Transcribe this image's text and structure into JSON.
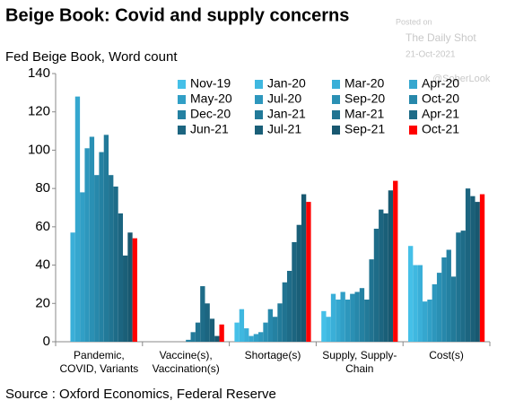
{
  "chart_data": {
    "type": "bar",
    "title": "Beige Book: Covid and supply concerns",
    "subtitle": "Fed Beige Book, Word count",
    "source": "Source : Oxford Economics, Federal Reserve",
    "watermark": [
      "Posted on",
      "The Daily Shot",
      "21-Oct-2021",
      "@SoberLook"
    ],
    "categories": [
      [
        "Pandemic,",
        "COVID, Variants"
      ],
      [
        "Vaccine(s),",
        "Vaccination(s)"
      ],
      [
        "Shortage(s)"
      ],
      [
        "Supply, Supply-",
        "Chain"
      ],
      [
        "Cost(s)"
      ]
    ],
    "ylim": [
      0,
      140
    ],
    "yticks": [
      0,
      20,
      40,
      60,
      80,
      100,
      120,
      140
    ],
    "grid": false,
    "legend": "top-right",
    "series": [
      {
        "name": "Nov-19",
        "color": "#45c0e8",
        "values": [
          0,
          0,
          10,
          16,
          50
        ]
      },
      {
        "name": "Jan-20",
        "color": "#3fb8e0",
        "values": [
          0,
          0,
          17,
          13,
          40
        ]
      },
      {
        "name": "Mar-20",
        "color": "#3aafd8",
        "values": [
          57,
          0,
          7,
          25,
          40
        ]
      },
      {
        "name": "Apr-20",
        "color": "#35a7cf",
        "values": [
          128,
          0,
          3,
          22,
          21
        ]
      },
      {
        "name": "May-20",
        "color": "#319fc6",
        "values": [
          78,
          0,
          4,
          26,
          22
        ]
      },
      {
        "name": "Jul-20",
        "color": "#2d97bd",
        "values": [
          101,
          0,
          5,
          22,
          30
        ]
      },
      {
        "name": "Sep-20",
        "color": "#2a90b4",
        "values": [
          107,
          0,
          10,
          25,
          36
        ]
      },
      {
        "name": "Oct-20",
        "color": "#2788ab",
        "values": [
          87,
          0,
          17,
          26,
          44
        ]
      },
      {
        "name": "Dec-20",
        "color": "#2481a2",
        "values": [
          99,
          1,
          13,
          28,
          48
        ]
      },
      {
        "name": "Jan-21",
        "color": "#227a99",
        "values": [
          108,
          5,
          20,
          22,
          34
        ]
      },
      {
        "name": "Mar-21",
        "color": "#207391",
        "values": [
          87,
          10,
          31,
          43,
          57
        ]
      },
      {
        "name": "Apr-21",
        "color": "#1e6c88",
        "values": [
          81,
          29,
          37,
          59,
          58
        ]
      },
      {
        "name": "Jun-21",
        "color": "#1c6580",
        "values": [
          67,
          20,
          52,
          69,
          80
        ]
      },
      {
        "name": "Jul-21",
        "color": "#1a5f78",
        "values": [
          45,
          12,
          61,
          67,
          76
        ]
      },
      {
        "name": "Sep-21",
        "color": "#185870",
        "values": [
          57,
          3,
          77,
          79,
          73
        ]
      },
      {
        "name": "Oct-21",
        "color": "#ff0000",
        "values": [
          54,
          9,
          73,
          84,
          77
        ]
      }
    ]
  }
}
